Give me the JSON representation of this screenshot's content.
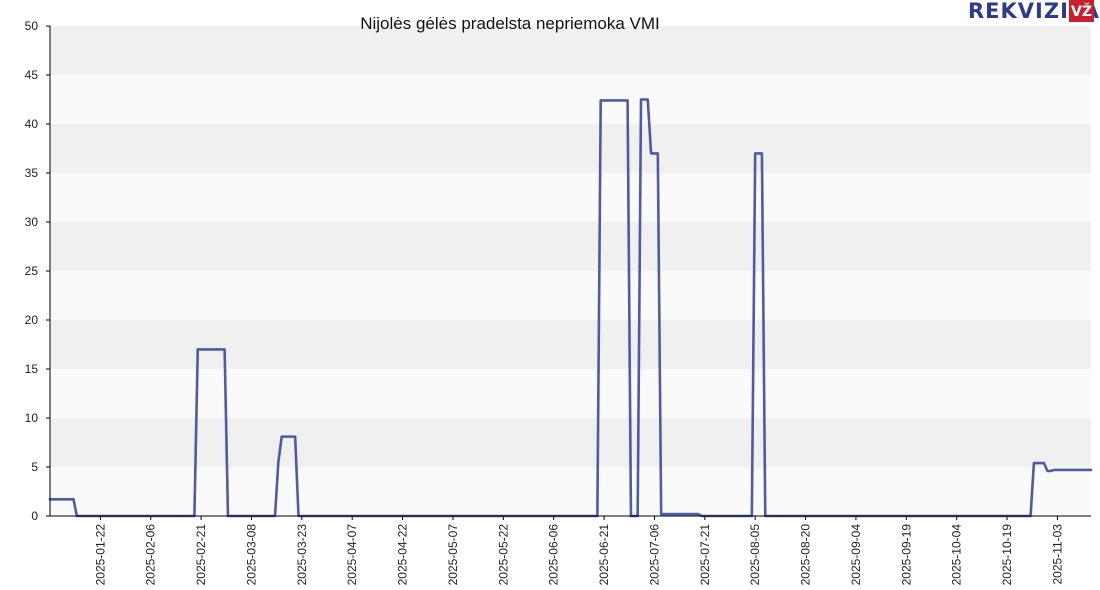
{
  "chart_data": {
    "type": "line",
    "title": "Nijolės gėlės pradelsta nepriemoka VMI",
    "xlabel": "",
    "ylabel": "",
    "ylim": [
      0,
      50
    ],
    "yticks": [
      0,
      5,
      10,
      15,
      20,
      25,
      30,
      35,
      40,
      45,
      50
    ],
    "xlim": [
      "2025-01-07",
      "2025-11-13"
    ],
    "xticks": [
      "2025-01-22",
      "2025-02-06",
      "2025-02-21",
      "2025-03-08",
      "2025-03-23",
      "2025-04-07",
      "2025-04-22",
      "2025-05-07",
      "2025-05-22",
      "2025-06-06",
      "2025-06-21",
      "2025-07-06",
      "2025-07-21",
      "2025-08-05",
      "2025-08-20",
      "2025-09-04",
      "2025-09-19",
      "2025-10-04",
      "2025-10-19",
      "2025-11-03"
    ],
    "grid": "horizontal bands",
    "legend": "none",
    "series": [
      {
        "color": "#3a4a9a",
        "points": [
          [
            "2025-01-07",
            1.7
          ],
          [
            "2025-01-14",
            1.7
          ],
          [
            "2025-01-15",
            0
          ],
          [
            "2025-02-19",
            0
          ],
          [
            "2025-02-20",
            17
          ],
          [
            "2025-02-28",
            17
          ],
          [
            "2025-03-01",
            0
          ],
          [
            "2025-03-15",
            0
          ],
          [
            "2025-03-16",
            5.5
          ],
          [
            "2025-03-17",
            8.1
          ],
          [
            "2025-03-21",
            8.1
          ],
          [
            "2025-03-22",
            0
          ],
          [
            "2025-06-19",
            0
          ],
          [
            "2025-06-20",
            42.4
          ],
          [
            "2025-06-28",
            42.4
          ],
          [
            "2025-06-29",
            0
          ],
          [
            "2025-07-01",
            0
          ],
          [
            "2025-07-02",
            42.5
          ],
          [
            "2025-07-04",
            42.5
          ],
          [
            "2025-07-05",
            37
          ],
          [
            "2025-07-07",
            37
          ],
          [
            "2025-07-08",
            0.2
          ],
          [
            "2025-07-19",
            0.2
          ],
          [
            "2025-07-20",
            0
          ],
          [
            "2025-08-04",
            0
          ],
          [
            "2025-08-05",
            37
          ],
          [
            "2025-08-07",
            37
          ],
          [
            "2025-08-08",
            0
          ],
          [
            "2025-10-26",
            0
          ],
          [
            "2025-10-27",
            5.4
          ],
          [
            "2025-10-30",
            5.4
          ],
          [
            "2025-10-31",
            4.6
          ],
          [
            "2025-11-01",
            4.6
          ],
          [
            "2025-11-02",
            4.7
          ],
          [
            "2025-11-13",
            4.7
          ]
        ]
      }
    ]
  },
  "logo": {
    "text": "REKVIZITAI",
    "badge": "VŽ",
    "text_color": "#2d3b8f",
    "badge_color": "#c8202f"
  },
  "colors": {
    "band_dark": "#f0f0f0",
    "band_light": "#fafafa",
    "line": "#3a4a9a",
    "axis": "#000000"
  }
}
